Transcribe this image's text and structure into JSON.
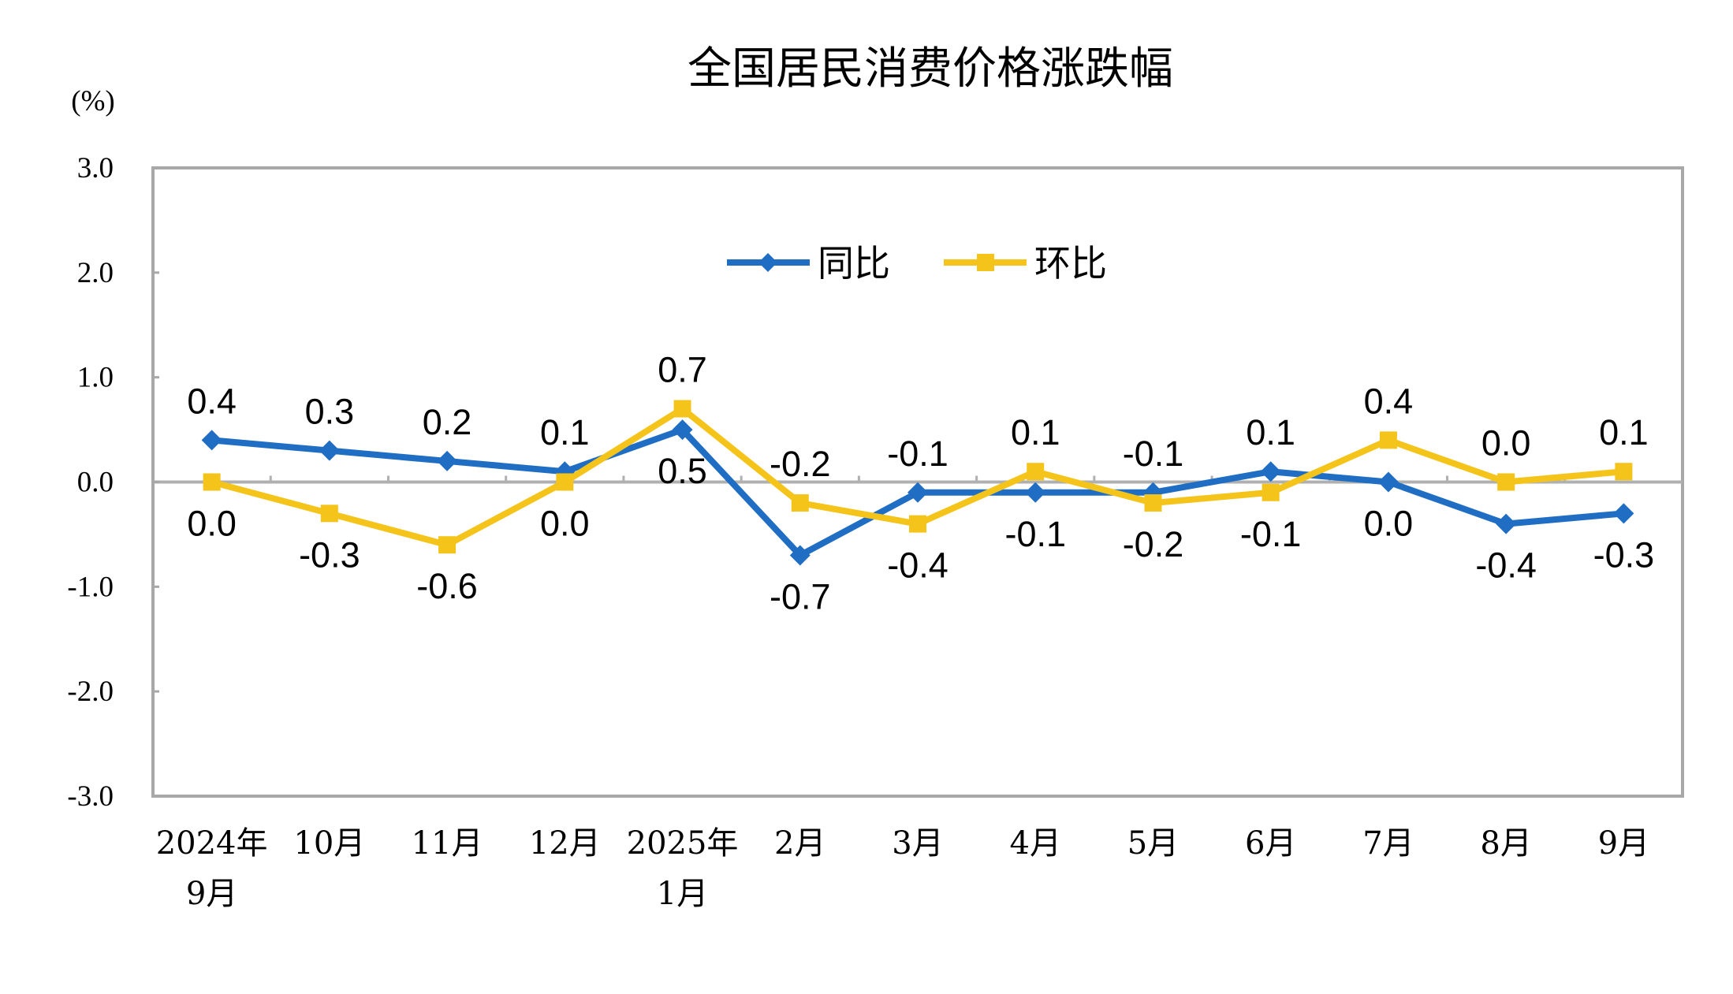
{
  "chart_data": {
    "type": "line",
    "title": "全国居民消费价格涨跌幅",
    "ylabel": "(%)",
    "xlabel": "",
    "ylim": [
      -3.0,
      3.0
    ],
    "yticks": [
      "3.0",
      "2.0",
      "1.0",
      "0.0",
      "-1.0",
      "-2.0",
      "-3.0"
    ],
    "categories": [
      [
        "2024年",
        "9月"
      ],
      [
        "10月"
      ],
      [
        "11月"
      ],
      [
        "12月"
      ],
      [
        "2025年",
        "1月"
      ],
      [
        "2月"
      ],
      [
        "3月"
      ],
      [
        "4月"
      ],
      [
        "5月"
      ],
      [
        "6月"
      ],
      [
        "7月"
      ],
      [
        "8月"
      ],
      [
        "9月"
      ]
    ],
    "series": [
      {
        "name": "同比",
        "color": "#1f6ec4",
        "marker": "diamond",
        "values": [
          0.4,
          0.3,
          0.2,
          0.1,
          0.5,
          -0.7,
          -0.1,
          -0.1,
          -0.1,
          0.1,
          0.0,
          -0.4,
          -0.3
        ]
      },
      {
        "name": "环比",
        "color": "#f4c41a",
        "marker": "square",
        "values": [
          0.0,
          -0.3,
          -0.6,
          0.0,
          0.7,
          -0.2,
          -0.4,
          0.1,
          -0.2,
          -0.1,
          0.4,
          0.0,
          0.1
        ]
      }
    ],
    "grid": false,
    "legend": "top-center"
  }
}
